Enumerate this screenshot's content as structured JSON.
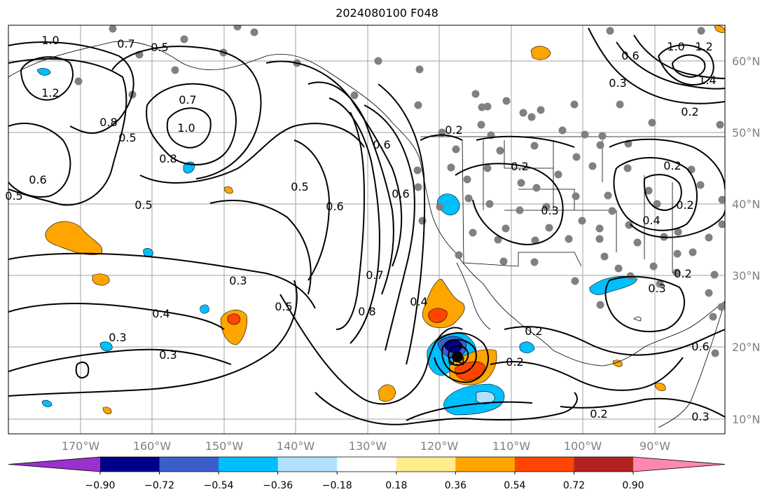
{
  "title": "2024080100 F048",
  "lat_labels": [
    "60°N",
    "50°N",
    "40°N",
    "30°N",
    "20°N",
    "10°N"
  ],
  "lon_labels": [
    "170°W",
    "160°W",
    "150°W",
    "140°W",
    "130°W",
    "120°W",
    "110°W",
    "100°W",
    "90°W"
  ],
  "colorbar": {
    "colors": [
      "#9932cc",
      "#00008b",
      "#3a5fcd",
      "#00bfff",
      "#b0e2ff",
      "#ffffff",
      "#ffec8b",
      "#ffa500",
      "#ff4500",
      "#b22222",
      "#ff88b0"
    ],
    "tick_labels": [
      "−0.90",
      "−0.72",
      "−0.54",
      "−0.36",
      "−0.18",
      "0.18",
      "0.36",
      "0.54",
      "0.72",
      "0.90"
    ]
  },
  "contour_labels": [
    "1.0",
    "0.5",
    "0.7",
    "1.2",
    "0.8",
    "0.5",
    "0.6",
    "0.5",
    "0.7",
    "1.0",
    "0.8",
    "0.5",
    "0.5",
    "0.6",
    "0.6",
    "0.6",
    "0.2",
    "0.2",
    "0.3",
    "0.4",
    "0.3",
    "0.5",
    "0.7",
    "0.8",
    "0.4",
    "0.4",
    "0.3",
    "0.3",
    "0.2",
    "0.2",
    "0.2",
    "0.3",
    "0.2",
    "0.6",
    "1.0",
    "1.2",
    "1.4",
    "0.3",
    "0.2",
    "0.6",
    "0.4",
    "0.2",
    "0.3",
    "0.2"
  ]
}
